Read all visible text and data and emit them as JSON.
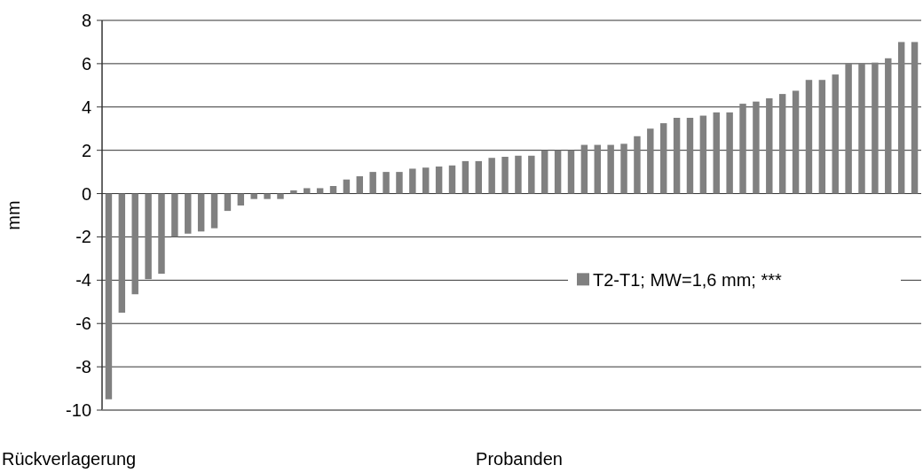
{
  "chart_data": {
    "type": "bar",
    "ylabel": "mm",
    "xlabel": "Probanden",
    "annotations": [
      "Rückverlagerung"
    ],
    "categories": [
      null,
      null,
      null,
      null,
      null,
      null,
      null,
      null,
      null,
      null,
      null,
      null,
      null,
      null,
      null,
      null,
      null,
      null,
      null,
      null,
      null,
      null,
      null,
      null,
      null,
      null,
      null,
      null,
      null,
      null,
      null,
      null,
      null,
      null,
      null,
      null,
      null,
      null,
      null,
      null,
      null,
      null,
      null,
      null,
      null,
      null,
      null,
      null,
      null,
      null,
      null,
      null,
      null,
      null,
      null,
      null,
      null,
      null,
      null,
      null,
      null,
      null
    ],
    "series": [
      {
        "name": "T2-T1; MW=1,6 mm; ***",
        "color": "#808080",
        "values": [
          -9.5,
          -5.5,
          -4.65,
          -3.95,
          -3.7,
          -2.0,
          -1.85,
          -1.75,
          -1.6,
          -0.8,
          -0.55,
          -0.25,
          -0.25,
          -0.25,
          0.15,
          0.25,
          0.25,
          0.35,
          0.65,
          0.8,
          1.0,
          1.0,
          1.0,
          1.15,
          1.2,
          1.25,
          1.3,
          1.5,
          1.5,
          1.65,
          1.7,
          1.75,
          1.75,
          2.0,
          2.0,
          2.0,
          2.25,
          2.25,
          2.25,
          2.3,
          2.65,
          3.0,
          3.25,
          3.5,
          3.5,
          3.6,
          3.75,
          3.75,
          4.15,
          4.25,
          4.4,
          4.6,
          4.75,
          5.25,
          5.25,
          5.5,
          6.0,
          6.0,
          6.05,
          6.25,
          7.0,
          7.0
        ]
      }
    ],
    "ylim": [
      -10,
      8
    ],
    "yticks": [
      -10,
      -8,
      -6,
      -4,
      -2,
      0,
      2,
      4,
      6,
      8
    ],
    "grid": "y",
    "legend": "right"
  }
}
